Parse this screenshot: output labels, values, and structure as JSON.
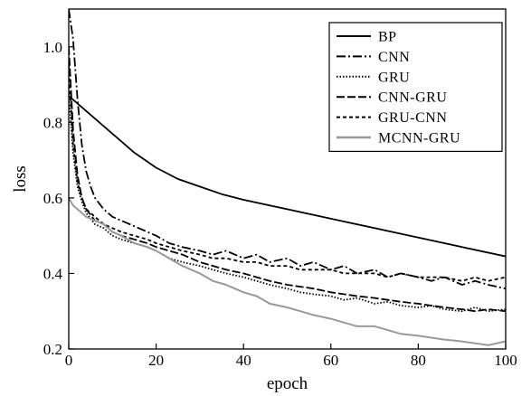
{
  "chart_data": {
    "type": "line",
    "xlabel": "epoch",
    "ylabel": "loss",
    "xlim": [
      0,
      100
    ],
    "ylim": [
      0.2,
      1.1
    ],
    "xticks": [
      0,
      20,
      40,
      60,
      80,
      100
    ],
    "yticks": [
      0.2,
      0.4,
      0.6,
      0.8,
      1.0
    ],
    "xtick_labels": [
      "0",
      "20",
      "40",
      "60",
      "80",
      "100"
    ],
    "ytick_labels": [
      "0.2",
      "0.4",
      "0.6",
      "0.8",
      "1.0"
    ],
    "grid": false,
    "legend_position": "top-right",
    "series": [
      {
        "name": "BP",
        "color": "#000000",
        "dash": "solid",
        "x": [
          0,
          1,
          2,
          4,
          6,
          8,
          10,
          15,
          20,
          25,
          30,
          35,
          40,
          50,
          60,
          70,
          80,
          90,
          100
        ],
        "y": [
          0.87,
          0.86,
          0.85,
          0.83,
          0.81,
          0.79,
          0.77,
          0.72,
          0.68,
          0.65,
          0.63,
          0.61,
          0.595,
          0.57,
          0.545,
          0.52,
          0.495,
          0.47,
          0.445
        ]
      },
      {
        "name": "CNN",
        "color": "#000000",
        "dash": "dashdot",
        "x": [
          0,
          1,
          2,
          3,
          4,
          5,
          6,
          8,
          10,
          12,
          14,
          16,
          18,
          20,
          23,
          26,
          30,
          33,
          36,
          40,
          43,
          46,
          50,
          53,
          56,
          60,
          63,
          66,
          70,
          73,
          76,
          80,
          83,
          86,
          90,
          93,
          96,
          100
        ],
        "y": [
          1.1,
          1.02,
          0.86,
          0.74,
          0.67,
          0.63,
          0.6,
          0.57,
          0.55,
          0.54,
          0.53,
          0.52,
          0.51,
          0.5,
          0.48,
          0.47,
          0.46,
          0.45,
          0.46,
          0.44,
          0.45,
          0.43,
          0.44,
          0.42,
          0.43,
          0.41,
          0.42,
          0.4,
          0.41,
          0.39,
          0.4,
          0.39,
          0.38,
          0.39,
          0.37,
          0.38,
          0.37,
          0.36
        ]
      },
      {
        "name": "GRU",
        "color": "#000000",
        "dash": "dotted",
        "x": [
          0,
          1,
          2,
          3,
          4,
          6,
          8,
          10,
          12,
          15,
          18,
          20,
          23,
          26,
          30,
          33,
          36,
          40,
          43,
          46,
          50,
          53,
          56,
          60,
          63,
          66,
          70,
          73,
          76,
          80,
          83,
          86,
          90,
          93,
          96,
          100
        ],
        "y": [
          0.88,
          0.72,
          0.63,
          0.59,
          0.56,
          0.53,
          0.52,
          0.5,
          0.49,
          0.48,
          0.47,
          0.46,
          0.44,
          0.43,
          0.42,
          0.41,
          0.4,
          0.39,
          0.38,
          0.37,
          0.36,
          0.35,
          0.345,
          0.34,
          0.33,
          0.335,
          0.32,
          0.325,
          0.315,
          0.31,
          0.315,
          0.305,
          0.3,
          0.31,
          0.3,
          0.305
        ]
      },
      {
        "name": "CNN-GRU",
        "color": "#000000",
        "dash": "longdash",
        "x": [
          0,
          1,
          2,
          3,
          4,
          6,
          8,
          10,
          12,
          15,
          18,
          20,
          23,
          26,
          30,
          33,
          36,
          40,
          43,
          46,
          50,
          53,
          56,
          60,
          63,
          66,
          70,
          73,
          76,
          80,
          83,
          86,
          90,
          93,
          96,
          100
        ],
        "y": [
          1.0,
          0.78,
          0.66,
          0.6,
          0.57,
          0.54,
          0.53,
          0.51,
          0.5,
          0.49,
          0.48,
          0.47,
          0.46,
          0.45,
          0.43,
          0.42,
          0.41,
          0.4,
          0.39,
          0.38,
          0.37,
          0.365,
          0.36,
          0.35,
          0.345,
          0.34,
          0.335,
          0.33,
          0.325,
          0.32,
          0.315,
          0.31,
          0.305,
          0.3,
          0.305,
          0.3
        ]
      },
      {
        "name": "GRU-CNN",
        "color": "#000000",
        "dash": "dashed",
        "x": [
          0,
          1,
          2,
          3,
          4,
          6,
          8,
          10,
          12,
          15,
          18,
          20,
          23,
          26,
          30,
          33,
          36,
          40,
          43,
          46,
          50,
          53,
          56,
          60,
          63,
          66,
          70,
          73,
          76,
          80,
          83,
          86,
          90,
          93,
          96,
          100
        ],
        "y": [
          0.95,
          0.74,
          0.64,
          0.6,
          0.57,
          0.55,
          0.53,
          0.52,
          0.51,
          0.5,
          0.49,
          0.48,
          0.47,
          0.46,
          0.45,
          0.44,
          0.44,
          0.43,
          0.43,
          0.42,
          0.42,
          0.41,
          0.41,
          0.41,
          0.4,
          0.4,
          0.4,
          0.39,
          0.4,
          0.39,
          0.39,
          0.39,
          0.38,
          0.39,
          0.38,
          0.39
        ]
      },
      {
        "name": "MCNN-GRU",
        "color": "#999999",
        "dash": "solid",
        "x": [
          0,
          1,
          2,
          4,
          6,
          8,
          10,
          12,
          15,
          18,
          20,
          23,
          26,
          30,
          33,
          36,
          40,
          43,
          46,
          50,
          53,
          56,
          60,
          63,
          66,
          70,
          73,
          76,
          80,
          83,
          86,
          90,
          93,
          96,
          100
        ],
        "y": [
          0.6,
          0.58,
          0.57,
          0.55,
          0.54,
          0.53,
          0.51,
          0.5,
          0.48,
          0.47,
          0.46,
          0.44,
          0.42,
          0.4,
          0.38,
          0.37,
          0.35,
          0.34,
          0.32,
          0.31,
          0.3,
          0.29,
          0.28,
          0.27,
          0.26,
          0.26,
          0.25,
          0.24,
          0.235,
          0.23,
          0.225,
          0.22,
          0.215,
          0.21,
          0.22
        ]
      }
    ]
  }
}
